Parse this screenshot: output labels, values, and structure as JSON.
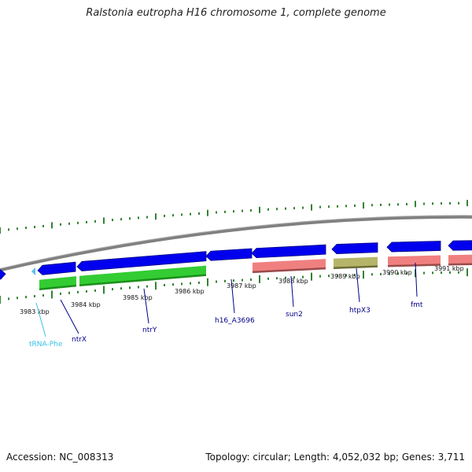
{
  "title": "Ralstonia eutropha H16 chromosome 1, complete genome",
  "footer": {
    "accession": "Accession: NC_008313",
    "summary": "Topology: circular; Length: 4,052,032 bp; Genes: 3,711"
  },
  "colors": {
    "cds": "#0000ee",
    "rna_green": "#33cc33",
    "rna_pink": "#f08080",
    "rna_olive": "#b5b56a",
    "trna": "#5bc0eb",
    "tick": "#006400",
    "backbone": "#808080",
    "label": "#00008b",
    "trna_label": "#3cc0e8"
  },
  "scale_labels": [
    "3983 kbp",
    "3984 kbp",
    "3985 kbp",
    "3986 kbp",
    "3987 kbp",
    "3988 kbp",
    "3989 kbp",
    "3990 kbp",
    "3991 kbp"
  ],
  "gene_labels": [
    "tRNA-Phe",
    "ntrX",
    "ntrY",
    "h16_A3696",
    "sun2",
    "htpX3",
    "fmt"
  ]
}
